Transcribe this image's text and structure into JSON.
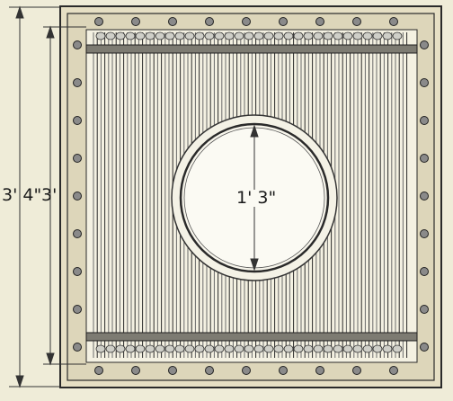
{
  "diagram": {
    "dimensions": {
      "outer_height": "3' 4\"",
      "inner_height": "3'",
      "circle_diameter": "1' 3\""
    },
    "colors": {
      "background": "#efecd8",
      "frame_fill": "#e6dfc4",
      "frame_stroke": "#2a2a2a",
      "panel_fill": "#f4f1e2",
      "rods": "#3c3c3c",
      "bolt": "#5a5a5a",
      "ring_fill": "#f4f2e6",
      "dimension_line": "#333333"
    }
  }
}
